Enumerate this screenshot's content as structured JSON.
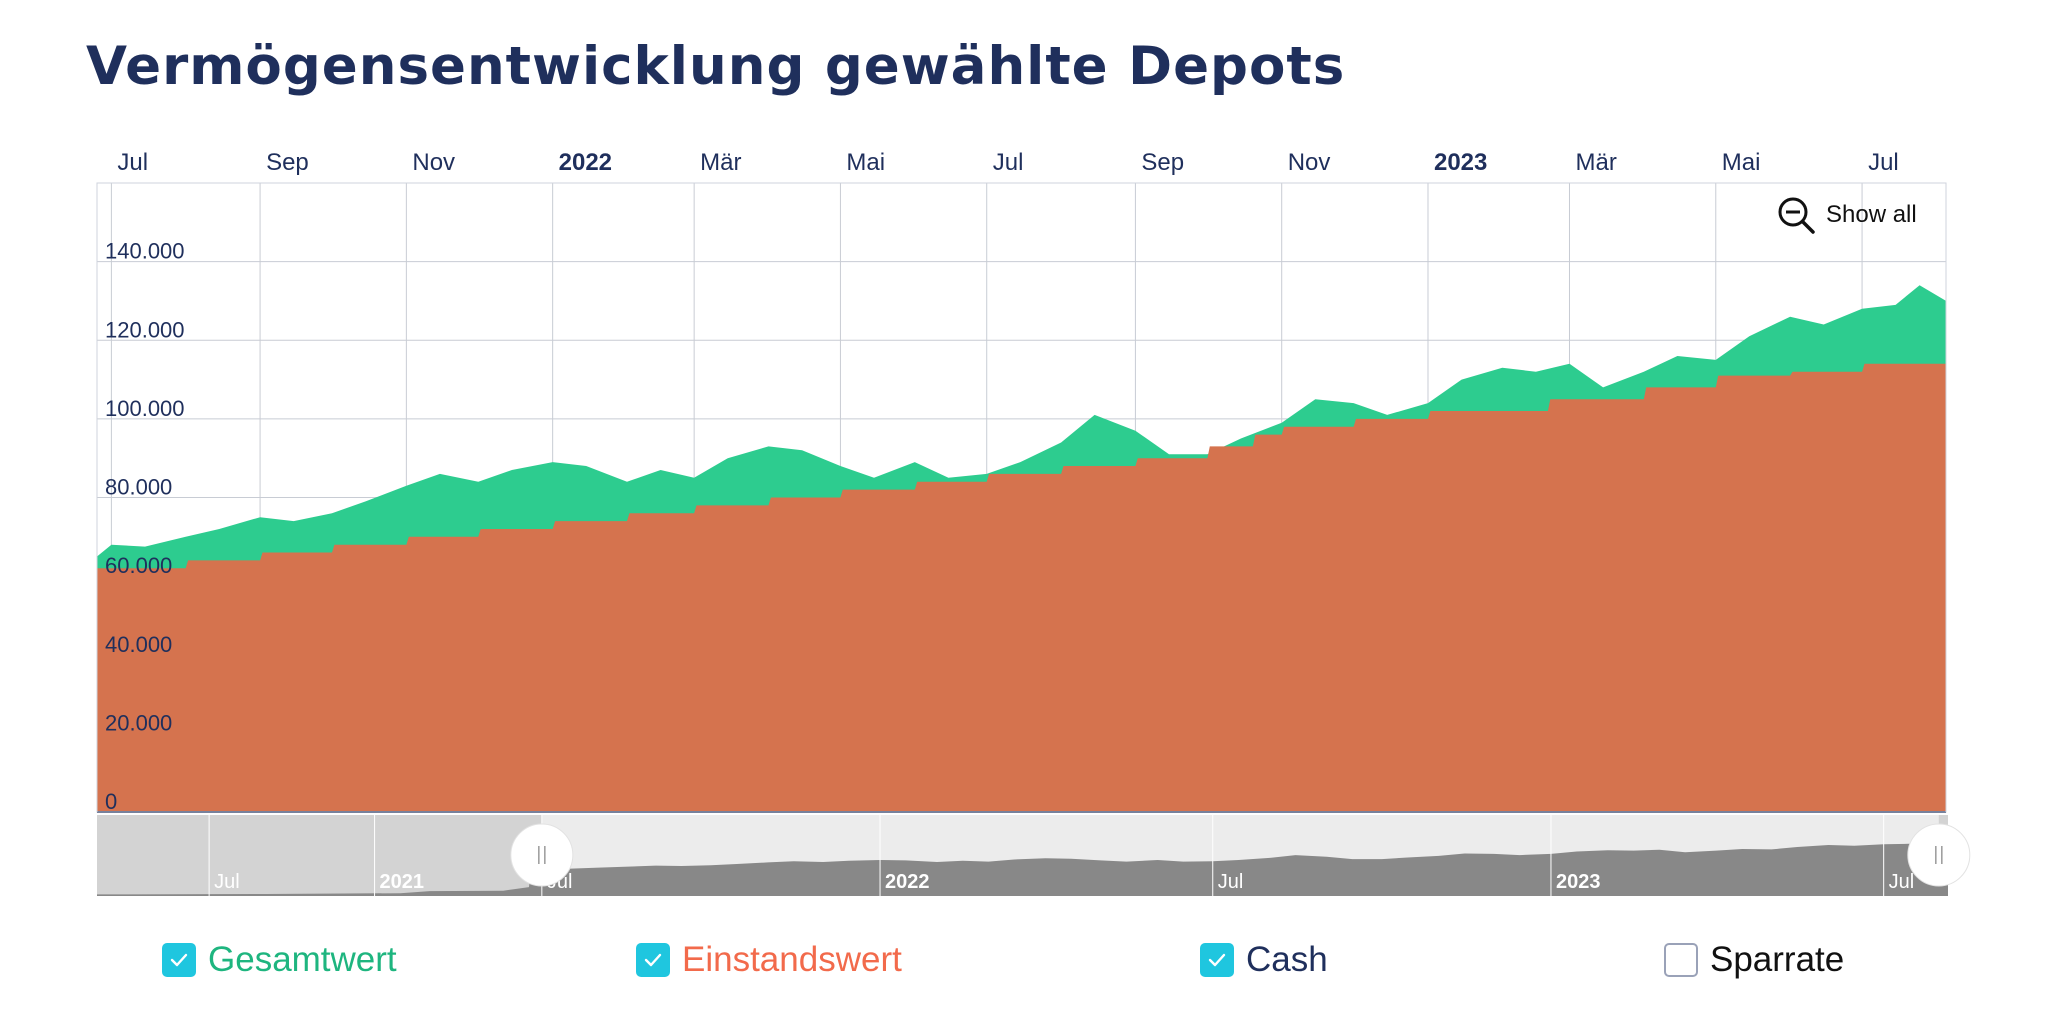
{
  "page_title": "Vermögensentwicklung gewählte Depots",
  "show_all_label": "Show all",
  "colors": {
    "gesamtwert": "#2dcc8f",
    "einstandswert": "#d5734e",
    "einstand_legend": "#f26a4b",
    "cash": "#1f2f5c",
    "navigator_fill": "#888888",
    "checkbox": "#1fc6df"
  },
  "legend": [
    {
      "label": "Gesamtwert",
      "checked": true,
      "color": "#1eb57f"
    },
    {
      "label": "Einstandswert",
      "checked": true,
      "color": "#f26a4b"
    },
    {
      "label": "Cash",
      "checked": true,
      "color": "#1f2f5c"
    },
    {
      "label": "Sparrate",
      "checked": false,
      "color": "#111111"
    }
  ],
  "navigator": {
    "labels": [
      {
        "text": "Jul",
        "bold": false
      },
      {
        "text": "2021",
        "bold": true
      },
      {
        "text": "Jul",
        "bold": false
      },
      {
        "text": "2022",
        "bold": true
      },
      {
        "text": "Jul",
        "bold": false
      },
      {
        "text": "2023",
        "bold": true
      },
      {
        "text": "Jul",
        "bold": false
      }
    ],
    "selected_range": [
      "2021-07-01",
      "2023-07-31"
    ]
  },
  "chart_data": {
    "type": "area",
    "x_axis_position": "top",
    "grid": true,
    "x_tick_labels": [
      {
        "text": "Jul",
        "date": "2021-07-01",
        "bold": false
      },
      {
        "text": "Sep",
        "date": "2021-09-01",
        "bold": false
      },
      {
        "text": "Nov",
        "date": "2021-11-01",
        "bold": false
      },
      {
        "text": "2022",
        "date": "2022-01-01",
        "bold": true
      },
      {
        "text": "Mär",
        "date": "2022-03-01",
        "bold": false
      },
      {
        "text": "Mai",
        "date": "2022-05-01",
        "bold": false
      },
      {
        "text": "Jul",
        "date": "2022-07-01",
        "bold": false
      },
      {
        "text": "Sep",
        "date": "2022-09-01",
        "bold": false
      },
      {
        "text": "Nov",
        "date": "2022-11-01",
        "bold": false
      },
      {
        "text": "2023",
        "date": "2023-01-01",
        "bold": true
      },
      {
        "text": "Mär",
        "date": "2023-03-01",
        "bold": false
      },
      {
        "text": "Mai",
        "date": "2023-05-01",
        "bold": false
      },
      {
        "text": "Jul",
        "date": "2023-07-01",
        "bold": false
      }
    ],
    "y_tick_labels": [
      "0",
      "20.000",
      "40.000",
      "60.000",
      "80.000",
      "100.000",
      "120.000",
      "140.000"
    ],
    "y_ticks": [
      0,
      20000,
      40000,
      60000,
      80000,
      100000,
      120000,
      140000
    ],
    "ylim": [
      0,
      160000
    ],
    "xlim": [
      "2021-06-25",
      "2023-08-05"
    ],
    "series": [
      {
        "name": "Gesamtwert",
        "points": [
          [
            "2021-06-25",
            65000
          ],
          [
            "2021-07-01",
            68000
          ],
          [
            "2021-07-15",
            67500
          ],
          [
            "2021-08-01",
            70000
          ],
          [
            "2021-08-15",
            72000
          ],
          [
            "2021-09-01",
            75000
          ],
          [
            "2021-09-15",
            74000
          ],
          [
            "2021-10-01",
            76000
          ],
          [
            "2021-10-15",
            79000
          ],
          [
            "2021-11-01",
            83000
          ],
          [
            "2021-11-15",
            86000
          ],
          [
            "2021-12-01",
            84000
          ],
          [
            "2021-12-15",
            87000
          ],
          [
            "2022-01-01",
            89000
          ],
          [
            "2022-01-15",
            88000
          ],
          [
            "2022-02-01",
            84000
          ],
          [
            "2022-02-15",
            87000
          ],
          [
            "2022-03-01",
            85000
          ],
          [
            "2022-03-15",
            90000
          ],
          [
            "2022-04-01",
            93000
          ],
          [
            "2022-04-15",
            92000
          ],
          [
            "2022-05-01",
            88000
          ],
          [
            "2022-05-15",
            85000
          ],
          [
            "2022-06-01",
            89000
          ],
          [
            "2022-06-15",
            85000
          ],
          [
            "2022-07-01",
            86000
          ],
          [
            "2022-07-15",
            89000
          ],
          [
            "2022-08-01",
            94000
          ],
          [
            "2022-08-15",
            101000
          ],
          [
            "2022-09-01",
            97000
          ],
          [
            "2022-09-15",
            91000
          ],
          [
            "2022-10-01",
            91000
          ],
          [
            "2022-10-15",
            95000
          ],
          [
            "2022-11-01",
            99000
          ],
          [
            "2022-11-15",
            105000
          ],
          [
            "2022-12-01",
            104000
          ],
          [
            "2022-12-15",
            101000
          ],
          [
            "2023-01-01",
            104000
          ],
          [
            "2023-01-15",
            110000
          ],
          [
            "2023-02-01",
            113000
          ],
          [
            "2023-02-15",
            112000
          ],
          [
            "2023-03-01",
            114000
          ],
          [
            "2023-03-15",
            108000
          ],
          [
            "2023-04-01",
            112000
          ],
          [
            "2023-04-15",
            116000
          ],
          [
            "2023-05-01",
            115000
          ],
          [
            "2023-05-15",
            121000
          ],
          [
            "2023-06-01",
            126000
          ],
          [
            "2023-06-15",
            124000
          ],
          [
            "2023-07-01",
            128000
          ],
          [
            "2023-07-15",
            129000
          ],
          [
            "2023-07-25",
            134000
          ],
          [
            "2023-08-05",
            130000
          ]
        ]
      },
      {
        "name": "Einstandswert",
        "points": [
          [
            "2021-06-25",
            62000
          ],
          [
            "2021-08-01",
            62000
          ],
          [
            "2021-08-02",
            64000
          ],
          [
            "2021-09-01",
            64000
          ],
          [
            "2021-09-02",
            66000
          ],
          [
            "2021-10-01",
            66000
          ],
          [
            "2021-10-02",
            68000
          ],
          [
            "2021-11-01",
            68000
          ],
          [
            "2021-11-02",
            70000
          ],
          [
            "2021-12-01",
            70000
          ],
          [
            "2021-12-02",
            72000
          ],
          [
            "2022-01-01",
            72000
          ],
          [
            "2022-01-02",
            74000
          ],
          [
            "2022-02-01",
            74000
          ],
          [
            "2022-02-02",
            76000
          ],
          [
            "2022-03-01",
            76000
          ],
          [
            "2022-03-02",
            78000
          ],
          [
            "2022-04-01",
            78000
          ],
          [
            "2022-04-02",
            80000
          ],
          [
            "2022-05-01",
            80000
          ],
          [
            "2022-05-02",
            82000
          ],
          [
            "2022-06-01",
            82000
          ],
          [
            "2022-06-02",
            84000
          ],
          [
            "2022-07-01",
            84000
          ],
          [
            "2022-07-02",
            86000
          ],
          [
            "2022-08-01",
            86000
          ],
          [
            "2022-08-02",
            88000
          ],
          [
            "2022-09-01",
            88000
          ],
          [
            "2022-09-02",
            90000
          ],
          [
            "2022-10-01",
            90000
          ],
          [
            "2022-10-02",
            93000
          ],
          [
            "2022-10-20",
            93000
          ],
          [
            "2022-10-21",
            96000
          ],
          [
            "2022-11-01",
            96000
          ],
          [
            "2022-11-02",
            98000
          ],
          [
            "2022-12-01",
            98000
          ],
          [
            "2022-12-02",
            100000
          ],
          [
            "2023-01-01",
            100000
          ],
          [
            "2023-01-02",
            102000
          ],
          [
            "2023-02-20",
            102000
          ],
          [
            "2023-02-21",
            105000
          ],
          [
            "2023-04-01",
            105000
          ],
          [
            "2023-04-02",
            108000
          ],
          [
            "2023-05-01",
            108000
          ],
          [
            "2023-05-02",
            111000
          ],
          [
            "2023-06-01",
            111000
          ],
          [
            "2023-06-02",
            112000
          ],
          [
            "2023-07-01",
            112000
          ],
          [
            "2023-07-02",
            114000
          ],
          [
            "2023-08-05",
            114000
          ]
        ]
      },
      {
        "name": "Cash",
        "points": [
          [
            "2021-06-25",
            0
          ],
          [
            "2023-08-05",
            0
          ]
        ]
      }
    ]
  }
}
